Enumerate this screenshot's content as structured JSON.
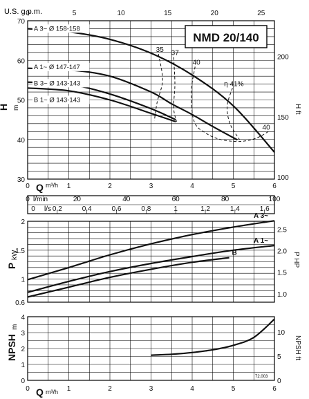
{
  "page_title": "NMD 20/140",
  "doc_code": "72.003",
  "axes": {
    "q_label": "Q",
    "q_unit": "m³/h",
    "usgpm_label": "U.S. g.p.m.",
    "lmin_label": "l/min",
    "ls_label": "l/s",
    "h_label": "H",
    "h_unit": "m",
    "hft_label": "H ft",
    "p_label": "P",
    "p_unit": "kW",
    "php_label": "P HP",
    "npsh_label": "NPSH",
    "npsh_unit": "m",
    "npshft_label": "NPSH ft"
  },
  "chart_data": [
    {
      "id": "head",
      "type": "line",
      "title": "NMD 20/140",
      "xlabel": "Q m³/h",
      "ylabel": "H m",
      "xlim": [
        0,
        6
      ],
      "ylim": [
        30,
        70
      ],
      "x_ticks": [
        0,
        1,
        2,
        3,
        4,
        5,
        6
      ],
      "y_ticks": [
        30,
        40,
        50,
        60,
        70
      ],
      "top_axis": {
        "label": "U.S. g.p.m.",
        "ticks": [
          0,
          5,
          10,
          15,
          20,
          25
        ]
      },
      "right_axis": {
        "label": "H ft",
        "ticks": [
          100,
          150,
          200
        ]
      },
      "x_axis_2": {
        "label": "l/min",
        "ticks": [
          0,
          20,
          40,
          60,
          80,
          100
        ]
      },
      "x_axis_3": {
        "label": "l/s",
        "ticks": [
          0,
          0.2,
          0.4,
          0.6,
          0.8,
          1,
          1.2,
          1.4,
          1.6
        ]
      },
      "series": [
        {
          "name": "A 3~ Ø 158-158",
          "x": [
            0,
            1,
            2,
            3,
            4,
            5,
            6
          ],
          "y": [
            68,
            67.2,
            65.3,
            61.8,
            56.3,
            48.5,
            36.8
          ]
        },
        {
          "name": "A 1~ Ø 147-147",
          "x": [
            0,
            1,
            2,
            3,
            3.5,
            4,
            4.5,
            5.1
          ],
          "y": [
            58,
            57.6,
            56,
            52,
            49,
            46.3,
            43.3,
            39.9
          ]
        },
        {
          "name": "B 3~ Ø 143-143",
          "x": [
            0,
            1,
            2,
            3,
            3.6
          ],
          "y": [
            54.5,
            54,
            51.5,
            47.8,
            45
          ]
        },
        {
          "name": "B 1~ Ø 143-143",
          "x": [
            0,
            1,
            2,
            3,
            3.6
          ],
          "y": [
            53,
            52.3,
            50,
            46.6,
            44.5
          ]
        }
      ],
      "efficiency_curves": [
        {
          "label": "35",
          "x": [
            3.18,
            3.28,
            3.15,
            3.08
          ],
          "y": [
            61.6,
            55,
            49.5,
            44.8
          ]
        },
        {
          "label": "37",
          "x": [
            3.55,
            3.58,
            3.55,
            3.62
          ],
          "y": [
            60.8,
            54,
            48,
            44.5
          ]
        },
        {
          "label": "40",
          "x": [
            4.07,
            3.98,
            4.05,
            4.35,
            4.7,
            5.15,
            5.55,
            5.88
          ],
          "y": [
            58.4,
            52,
            44.5,
            41.5,
            40,
            39.5,
            40.3,
            42.2
          ]
        },
        {
          "label": "η 41%",
          "x": [
            4.98,
            4.85,
            4.92,
            5.15
          ],
          "y": [
            53,
            48.5,
            44,
            40
          ]
        }
      ],
      "right_label": "40"
    },
    {
      "id": "power",
      "type": "line",
      "xlabel": "Q m³/h",
      "ylabel": "P kW",
      "xlim": [
        0,
        6
      ],
      "ylim": [
        0.6,
        2
      ],
      "y_ticks": [
        0.6,
        1.0,
        1.5,
        2
      ],
      "right_axis": {
        "label": "P HP",
        "ticks": [
          1.0,
          1.5,
          2.0,
          2.5
        ]
      },
      "series": [
        {
          "name": "A 3~",
          "x": [
            0,
            1,
            2,
            3,
            4,
            5,
            6
          ],
          "y": [
            0.99,
            1.2,
            1.42,
            1.61,
            1.77,
            1.9,
            2.01
          ]
        },
        {
          "name": "A 1~",
          "x": [
            0,
            1,
            2,
            3,
            4,
            5,
            6
          ],
          "y": [
            0.77,
            0.96,
            1.13,
            1.27,
            1.39,
            1.5,
            1.58
          ]
        },
        {
          "name": "B",
          "x": [
            0,
            1,
            2,
            3,
            4,
            4.9
          ],
          "y": [
            0.69,
            0.86,
            1.03,
            1.17,
            1.29,
            1.37
          ]
        }
      ]
    },
    {
      "id": "npsh",
      "type": "line",
      "xlabel": "Q m³/h",
      "ylabel": "NPSH m",
      "xlim": [
        0,
        6
      ],
      "ylim": [
        0,
        4
      ],
      "x_ticks": [
        0,
        1,
        2,
        3,
        4,
        5,
        6
      ],
      "y_ticks": [
        0,
        1,
        2,
        3,
        4
      ],
      "right_axis": {
        "label": "NPSH ft",
        "ticks": [
          0,
          5,
          10
        ]
      },
      "series": [
        {
          "name": "",
          "x": [
            3,
            3.5,
            4,
            4.5,
            5,
            5.5,
            6
          ],
          "y": [
            1.58,
            1.64,
            1.75,
            1.92,
            2.2,
            2.7,
            3.85
          ]
        }
      ]
    }
  ]
}
